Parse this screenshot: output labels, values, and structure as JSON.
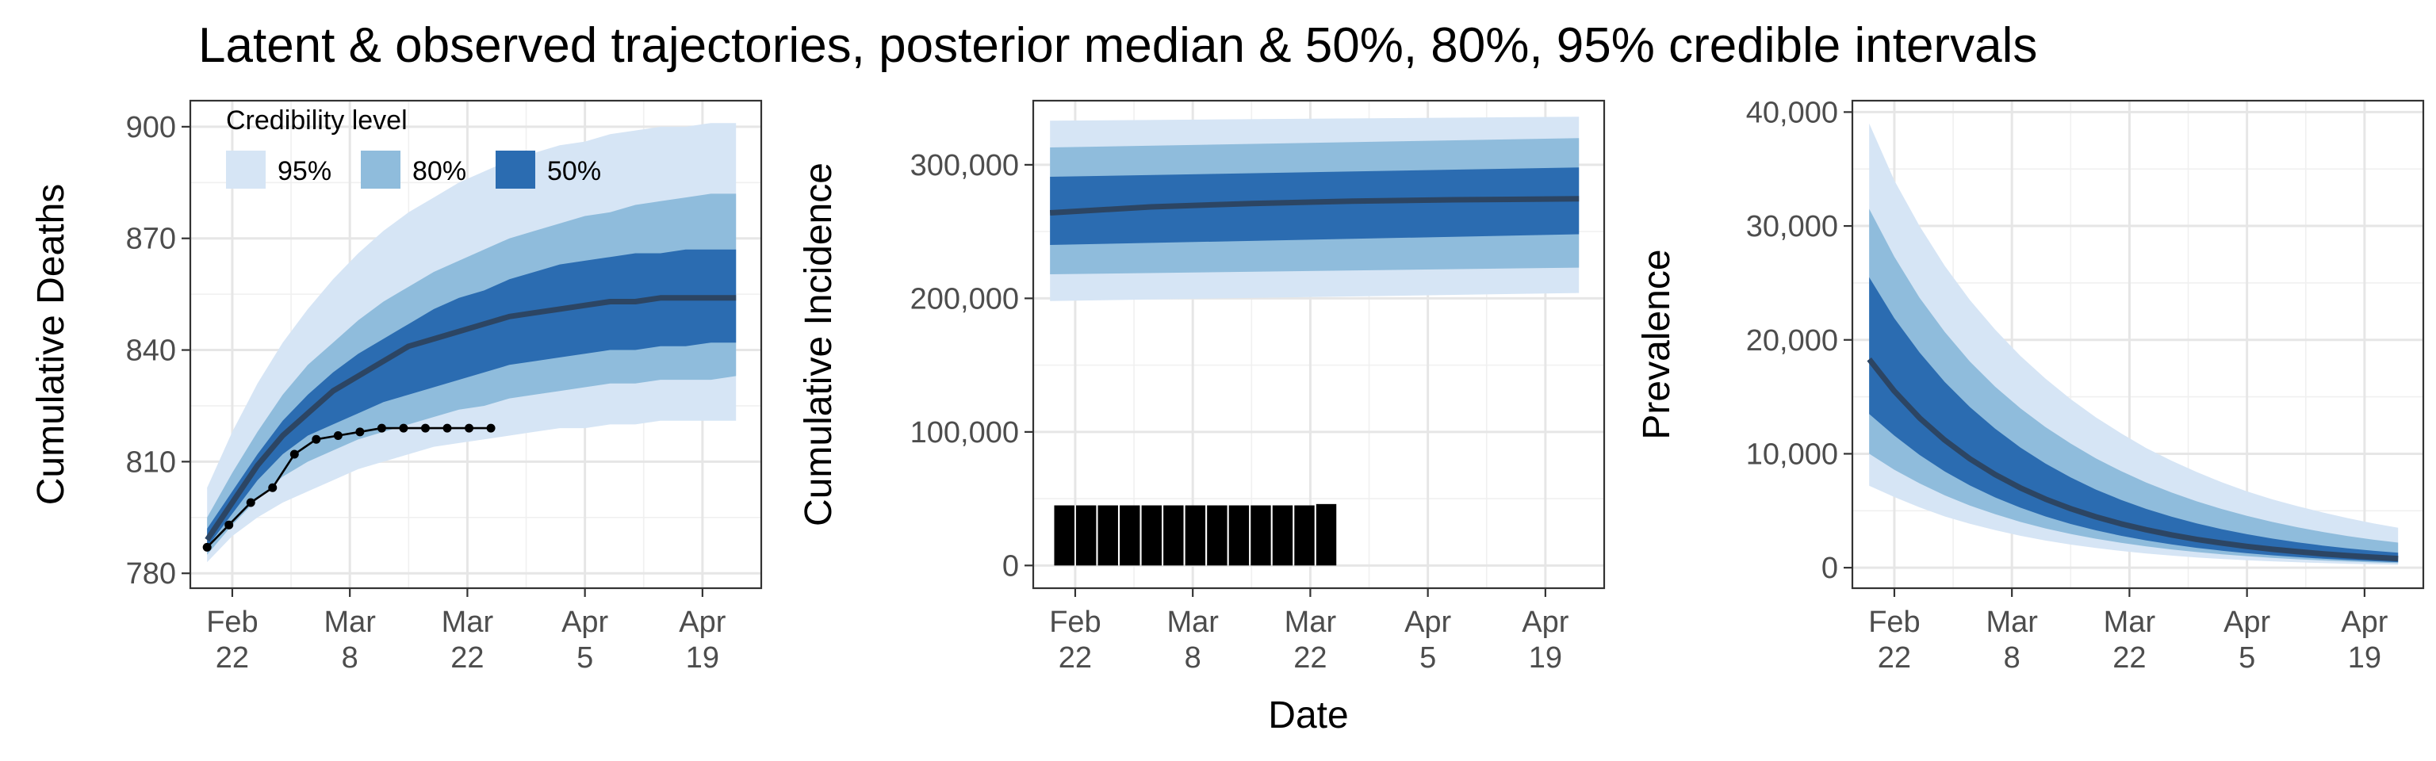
{
  "title": "Latent & observed trajectories, posterior median & 50%, 80%, 95% credible intervals",
  "xlabel": "Date",
  "colors": {
    "band95": "#d6e5f5",
    "band80": "#8fbcdc",
    "band50": "#2b6cb1",
    "median": "#2c4563",
    "observed": "#000000"
  },
  "legend": {
    "title": "Credibility level",
    "items": [
      {
        "label": "95%",
        "color": "#d6e5f5"
      },
      {
        "label": "80%",
        "color": "#8fbcdc"
      },
      {
        "label": "50%",
        "color": "#2b6cb1"
      }
    ],
    "placement": "top-left"
  },
  "x_ticks": [
    {
      "day": 0,
      "line1": "Feb",
      "line2": "22"
    },
    {
      "day": 14,
      "line1": "Mar",
      "line2": "8"
    },
    {
      "day": 28,
      "line1": "Mar",
      "line2": "22"
    },
    {
      "day": 42,
      "line1": "Apr",
      "line2": "5"
    },
    {
      "day": 56,
      "line1": "Apr",
      "line2": "19"
    }
  ],
  "chart_data": [
    {
      "type": "area",
      "ylabel": "Cumulative Deaths",
      "xlim": [
        -5,
        63
      ],
      "ylim": [
        776,
        907
      ],
      "yticks": [
        780,
        810,
        840,
        870,
        900
      ],
      "ytick_labels": [
        "780",
        "810",
        "840",
        "870",
        "900"
      ],
      "x": [
        -3,
        0,
        3,
        6,
        9,
        12,
        15,
        18,
        21,
        24,
        27,
        30,
        33,
        36,
        39,
        42,
        45,
        48,
        51,
        54,
        57,
        60
      ],
      "bands": {
        "lo95": [
          783,
          790,
          795,
          799,
          802,
          805,
          808,
          810,
          812,
          814,
          815,
          816,
          817,
          818,
          819,
          819,
          820,
          820,
          821,
          821,
          821,
          821
        ],
        "hi95": [
          803,
          818,
          831,
          842,
          851,
          859,
          866,
          872,
          877,
          881,
          885,
          888,
          891,
          893,
          895,
          896,
          898,
          899,
          900,
          900,
          901,
          901
        ],
        "lo80": [
          785,
          793,
          800,
          806,
          810,
          813,
          816,
          818,
          820,
          822,
          824,
          825,
          827,
          828,
          829,
          830,
          831,
          831,
          832,
          832,
          832,
          833
        ],
        "hi80": [
          795,
          807,
          818,
          828,
          836,
          842,
          848,
          853,
          857,
          861,
          864,
          867,
          870,
          872,
          874,
          876,
          877,
          879,
          880,
          881,
          882,
          882
        ],
        "lo50": [
          787,
          796,
          805,
          812,
          817,
          820,
          823,
          826,
          828,
          830,
          832,
          834,
          836,
          837,
          838,
          839,
          840,
          840,
          841,
          841,
          842,
          842
        ],
        "hi50": [
          792,
          802,
          812,
          821,
          828,
          834,
          839,
          843,
          847,
          851,
          854,
          856,
          859,
          861,
          863,
          864,
          865,
          866,
          866,
          867,
          867,
          867
        ]
      },
      "median": [
        789,
        799,
        809,
        817,
        823,
        829,
        833,
        837,
        841,
        843,
        845,
        847,
        849,
        850,
        851,
        852,
        853,
        853,
        854,
        854,
        854,
        854
      ],
      "observed": {
        "x": [
          -3,
          -0.4,
          2.2,
          4.8,
          7.4,
          10,
          12.6,
          15.2,
          17.8,
          20.4,
          23,
          25.6,
          28.2,
          30.8
        ],
        "y": [
          787,
          793,
          799,
          803,
          812,
          816,
          817,
          818,
          819,
          819,
          819,
          819,
          819,
          819
        ],
        "style": "line+points"
      }
    },
    {
      "type": "area",
      "ylabel": "Cumulative Incidence",
      "xlim": [
        -5,
        63
      ],
      "ylim": [
        -17000,
        348000
      ],
      "yticks": [
        0,
        100000,
        200000,
        300000
      ],
      "ytick_labels": [
        "0",
        "100,000",
        "200,000",
        "300,000"
      ],
      "x": [
        -3,
        60
      ],
      "bands": {
        "lo95": [
          198000,
          204000
        ],
        "hi95": [
          333000,
          336000
        ],
        "lo80": [
          218000,
          223000
        ],
        "hi80": [
          313000,
          320000
        ],
        "lo50": [
          240000,
          248000
        ],
        "hi50": [
          291000,
          298000
        ]
      },
      "median": [
        264000,
        274000
      ],
      "median_x": [
        -3,
        9,
        21,
        33,
        45,
        60
      ],
      "median_y": [
        264000,
        268500,
        271000,
        272800,
        273800,
        274500
      ],
      "observed": {
        "type": "bar",
        "x": [
          -1.3,
          1.3,
          3.9,
          6.5,
          9.1,
          11.7,
          14.3,
          16.9,
          19.5,
          22.1,
          24.7,
          27.3,
          29.9
        ],
        "y": [
          45000,
          45000,
          45000,
          45000,
          45000,
          45000,
          45000,
          45000,
          45000,
          45000,
          45000,
          45000,
          46000
        ],
        "bar_width_days": 2.4
      }
    },
    {
      "type": "area",
      "ylabel": "Prevalence",
      "xlim": [
        -5,
        63
      ],
      "ylim": [
        -1800,
        41000
      ],
      "yticks": [
        0,
        10000,
        20000,
        30000,
        40000
      ],
      "ytick_labels": [
        "0",
        "10,000",
        "20,000",
        "30,000",
        "40,000"
      ],
      "x": [
        -3,
        0,
        3,
        6,
        9,
        12,
        15,
        18,
        21,
        24,
        27,
        30,
        33,
        36,
        39,
        42,
        45,
        48,
        51,
        54,
        57,
        60
      ],
      "bands": {
        "lo95": [
          7200,
          6200,
          5300,
          4500,
          3850,
          3300,
          2800,
          2380,
          2030,
          1730,
          1470,
          1250,
          1060,
          900,
          770,
          655,
          560,
          475,
          405,
          345,
          295,
          250
        ],
        "hi95": [
          39000,
          34000,
          30000,
          26500,
          23500,
          20900,
          18600,
          16600,
          14800,
          13200,
          11800,
          10500,
          9400,
          8400,
          7500,
          6700,
          6000,
          5400,
          4850,
          4350,
          3900,
          3500
        ],
        "lo80": [
          10000,
          8600,
          7400,
          6350,
          5450,
          4700,
          4020,
          3450,
          2960,
          2540,
          2180,
          1870,
          1600,
          1375,
          1180,
          1010,
          865,
          740,
          635,
          545,
          465,
          400
        ],
        "hi80": [
          31500,
          27300,
          23700,
          20700,
          18100,
          15900,
          14000,
          12350,
          10900,
          9600,
          8480,
          7480,
          6600,
          5830,
          5150,
          4550,
          4020,
          3550,
          3140,
          2780,
          2460,
          2200
        ],
        "lo50": [
          13500,
          11600,
          9900,
          8450,
          7220,
          6170,
          5270,
          4500,
          3840,
          3280,
          2800,
          2390,
          2040,
          1740,
          1490,
          1270,
          1085,
          925,
          790,
          675,
          575,
          490
        ],
        "hi50": [
          25500,
          21900,
          18900,
          16300,
          14100,
          12200,
          10550,
          9140,
          7920,
          6860,
          5950,
          5160,
          4480,
          3890,
          3380,
          2940,
          2560,
          2230,
          1945,
          1700,
          1490,
          1310
        ]
      },
      "median": [
        18300,
        15500,
        13150,
        11200,
        9560,
        8180,
        7010,
        6020,
        5180,
        4460,
        3850,
        3330,
        2880,
        2490,
        2160,
        1870,
        1620,
        1405,
        1220,
        1060,
        920,
        800
      ]
    }
  ]
}
